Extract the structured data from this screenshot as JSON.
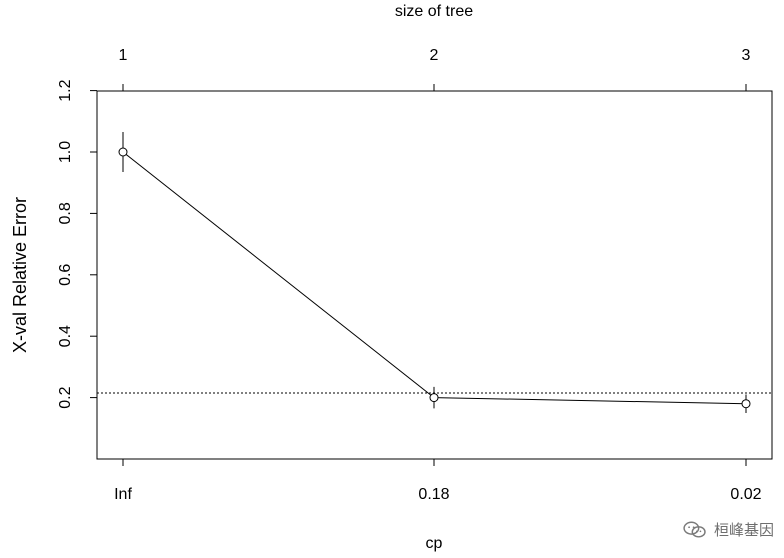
{
  "chart_data": {
    "type": "line",
    "title": "",
    "xlabel": "cp",
    "ylabel": "X-val Relative Error",
    "top_axis_label": "size of tree",
    "x_tick_labels": [
      "Inf",
      "0.18",
      "0.02"
    ],
    "top_tick_labels": [
      "1",
      "2",
      "3"
    ],
    "y_ticks": [
      0.2,
      0.4,
      0.6,
      0.8,
      1.0,
      1.2
    ],
    "y_tick_labels": [
      "0.2",
      "0.4",
      "0.6",
      "0.8",
      "1.0",
      "1.2"
    ],
    "ylim": [
      0.0,
      1.2
    ],
    "series": [
      {
        "values": [
          1.0,
          0.2,
          0.18
        ],
        "error_bars": [
          [
            0.935,
            1.065
          ],
          [
            0.165,
            0.235
          ],
          [
            0.15,
            0.21
          ]
        ]
      }
    ],
    "reference_line": 0.215,
    "grid": false,
    "legend": "none"
  },
  "watermark": {
    "text": "桓峰基因",
    "icon": "wechat-icon"
  }
}
